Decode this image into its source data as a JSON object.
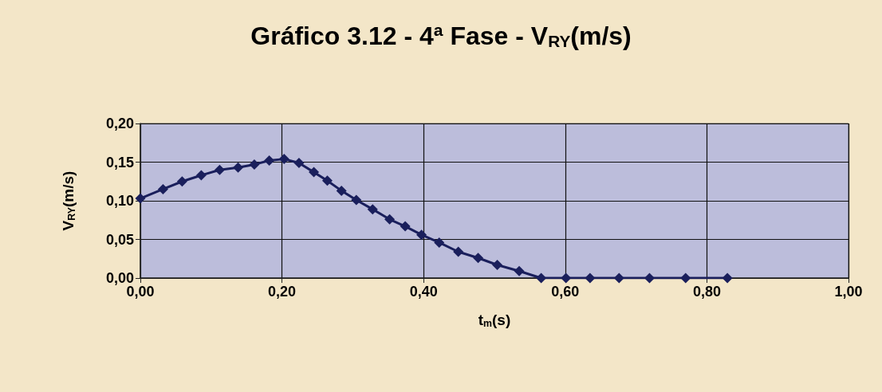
{
  "chart_data": {
    "type": "line",
    "title": "Gráfico 3.12 - 4ª Fase - V$_{RY}$(m/s)",
    "xlabel": "t$_{m}$(s)",
    "ylabel": "V$_{RY}$(m/s)",
    "series": [
      {
        "color": "#1a1f5c",
        "x": [
          0,
          0.032,
          0.059,
          0.086,
          0.112,
          0.138,
          0.161,
          0.182,
          0.203,
          0.224,
          0.245,
          0.264,
          0.284,
          0.305,
          0.328,
          0.352,
          0.374,
          0.397,
          0.422,
          0.449,
          0.477,
          0.504,
          0.535,
          0.566,
          0.601,
          0.635,
          0.676,
          0.719,
          0.77,
          0.829
        ],
        "values": [
          0.103,
          0.115,
          0.125,
          0.133,
          0.14,
          0.143,
          0.147,
          0.152,
          0.154,
          0.149,
          0.137,
          0.126,
          0.113,
          0.101,
          0.089,
          0.076,
          0.067,
          0.056,
          0.046,
          0.034,
          0.026,
          0.017,
          0.009,
          0,
          0,
          0,
          0,
          0,
          0,
          0
        ]
      }
    ],
    "xlim": [
      0,
      1
    ],
    "xticks": [
      {
        "value": 0,
        "label": "0,00"
      },
      {
        "value": 0.2,
        "label": "0,20"
      },
      {
        "value": 0.4,
        "label": "0,40"
      },
      {
        "value": 0.6,
        "label": "0,60"
      },
      {
        "value": 0.8,
        "label": "0,80"
      },
      {
        "value": 1,
        "label": "1,00"
      }
    ],
    "ylim": [
      0,
      0.2
    ],
    "yticks": [
      {
        "value": 0,
        "label": "0,00"
      },
      {
        "value": 0.05,
        "label": "0,05"
      },
      {
        "value": 0.1,
        "label": "0,10"
      },
      {
        "value": 0.15,
        "label": "0,15"
      },
      {
        "value": 0.2,
        "label": "0,20"
      }
    ],
    "grid": true,
    "marker": "diamond",
    "line_style": "solid"
  }
}
